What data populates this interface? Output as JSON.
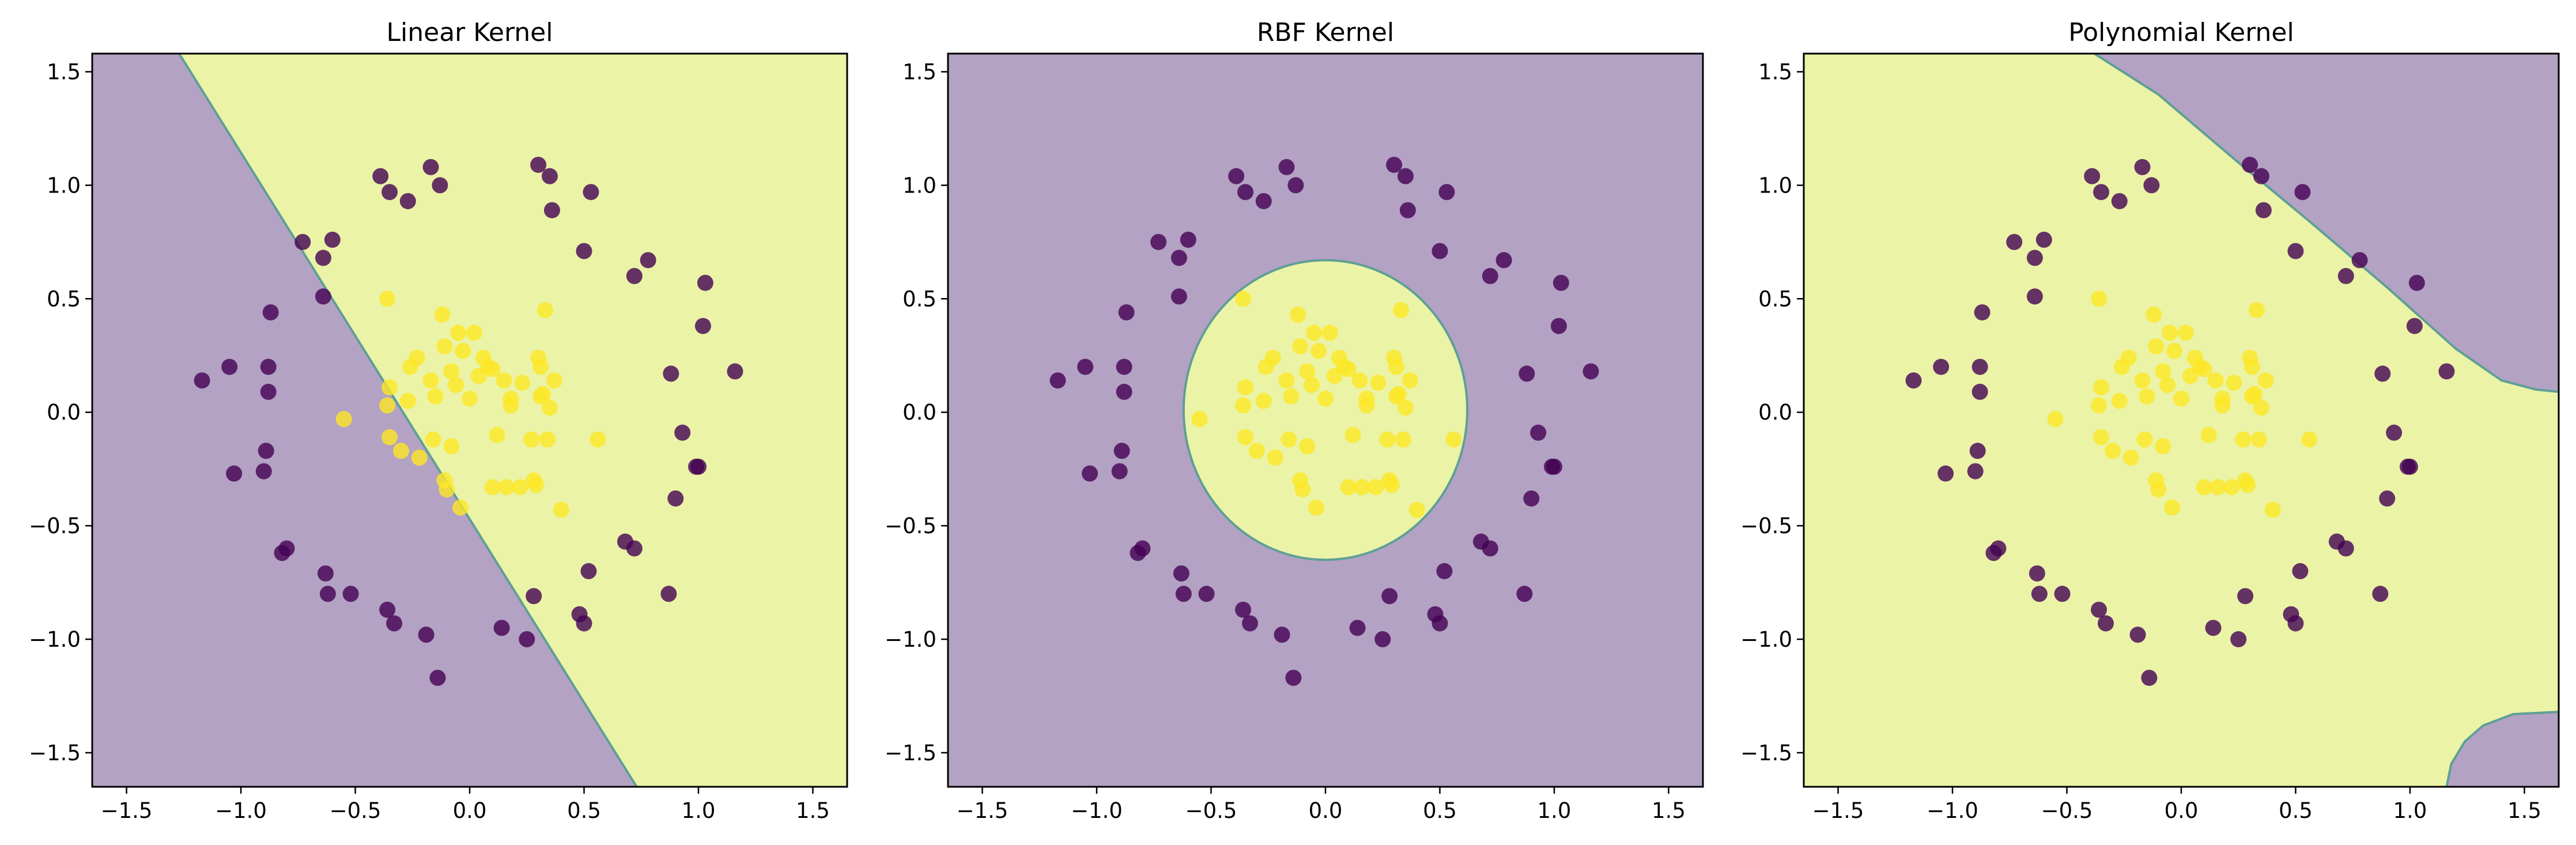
{
  "chart_data": [
    {
      "type": "scatter",
      "title": "Linear Kernel",
      "kernel": "linear",
      "xlim": [
        -1.65,
        1.65
      ],
      "ylim": [
        -1.65,
        1.58
      ],
      "xticks": [
        -1.5,
        -1.0,
        -0.5,
        0.0,
        0.5,
        1.0,
        1.5
      ],
      "yticks": [
        -1.5,
        -1.0,
        -0.5,
        0.0,
        0.5,
        1.0,
        1.5
      ],
      "xtick_labels": [
        "−1.5",
        "−1.0",
        "−0.5",
        "0.0",
        "0.5",
        "1.0",
        "1.5"
      ],
      "ytick_labels": [
        "−1.5",
        "−1.0",
        "−0.5",
        "0.0",
        "0.5",
        "1.0",
        "1.5"
      ],
      "grid": false,
      "background_colors": {
        "class_0": "#b3a2c3",
        "class_1": "#ebf3a7"
      },
      "boundary": {
        "orientation": "line",
        "points": [
          [
            -1.27,
            1.58
          ],
          [
            0.73,
            -1.65
          ]
        ]
      }
    },
    {
      "type": "scatter",
      "title": "RBF Kernel",
      "kernel": "rbf",
      "xlim": [
        -1.65,
        1.65
      ],
      "ylim": [
        -1.65,
        1.58
      ],
      "xticks": [
        -1.5,
        -1.0,
        -0.5,
        0.0,
        0.5,
        1.0,
        1.5
      ],
      "yticks": [
        -1.5,
        -1.0,
        -0.5,
        0.0,
        0.5,
        1.0,
        1.5
      ],
      "xtick_labels": [
        "−1.5",
        "−1.0",
        "−0.5",
        "0.0",
        "0.5",
        "1.0",
        "1.5"
      ],
      "ytick_labels": [
        "−1.5",
        "−1.0",
        "−0.5",
        "0.0",
        "0.5",
        "1.0",
        "1.5"
      ],
      "grid": false,
      "background_colors": {
        "class_0": "#b3a2c3",
        "class_1": "#ebf3a7"
      },
      "boundary": {
        "orientation": "ellipse",
        "center": [
          0.0,
          0.01
        ],
        "radius_x": 0.62,
        "radius_y": 0.66
      }
    },
    {
      "type": "scatter",
      "title": "Polynomial Kernel",
      "kernel": "poly",
      "xlim": [
        -1.65,
        1.65
      ],
      "ylim": [
        -1.65,
        1.58
      ],
      "xticks": [
        -1.5,
        -1.0,
        -0.5,
        0.0,
        0.5,
        1.0,
        1.5
      ],
      "yticks": [
        -1.5,
        -1.0,
        -0.5,
        0.0,
        0.5,
        1.0,
        1.5
      ],
      "xtick_labels": [
        "−1.5",
        "−1.0",
        "−0.5",
        "0.0",
        "0.5",
        "1.0",
        "1.5"
      ],
      "ytick_labels": [
        "−1.5",
        "−1.0",
        "−0.5",
        "0.0",
        "0.5",
        "1.0",
        "1.5"
      ],
      "grid": false,
      "background_colors": {
        "class_0": "#b3a2c3",
        "class_1": "#ebf3a7"
      },
      "boundary": {
        "orientation": "regions",
        "upper_right": [
          [
            -0.38,
            1.58
          ],
          [
            -0.1,
            1.4
          ],
          [
            0.25,
            1.1
          ],
          [
            0.55,
            0.85
          ],
          [
            0.9,
            0.55
          ],
          [
            1.2,
            0.28
          ],
          [
            1.4,
            0.14
          ],
          [
            1.55,
            0.1
          ],
          [
            1.65,
            0.09
          ]
        ],
        "lower_right": [
          [
            1.65,
            -1.32
          ],
          [
            1.45,
            -1.33
          ],
          [
            1.32,
            -1.38
          ],
          [
            1.24,
            -1.45
          ],
          [
            1.18,
            -1.55
          ],
          [
            1.16,
            -1.65
          ]
        ]
      }
    }
  ],
  "points": {
    "colors": {
      "class_0": "#440154",
      "class_1": "#fde725"
    },
    "class_0": [
      [
        -1.17,
        0.14
      ],
      [
        -1.05,
        0.2
      ],
      [
        -1.03,
        -0.27
      ],
      [
        -0.88,
        0.2
      ],
      [
        -0.88,
        0.09
      ],
      [
        -0.89,
        -0.17
      ],
      [
        -0.9,
        -0.26
      ],
      [
        -0.87,
        0.44
      ],
      [
        -0.8,
        -0.6
      ],
      [
        -0.82,
        -0.62
      ],
      [
        -0.73,
        0.75
      ],
      [
        -0.64,
        0.68
      ],
      [
        -0.6,
        0.76
      ],
      [
        -0.64,
        0.51
      ],
      [
        -0.63,
        -0.71
      ],
      [
        -0.62,
        -0.8
      ],
      [
        -0.52,
        -0.8
      ],
      [
        -0.39,
        1.04
      ],
      [
        -0.35,
        0.97
      ],
      [
        -0.27,
        0.93
      ],
      [
        -0.17,
        1.08
      ],
      [
        -0.13,
        1.0
      ],
      [
        -0.36,
        -0.87
      ],
      [
        -0.33,
        -0.93
      ],
      [
        -0.19,
        -0.98
      ],
      [
        -0.14,
        -1.17
      ],
      [
        0.3,
        1.09
      ],
      [
        0.35,
        1.04
      ],
      [
        0.36,
        0.89
      ],
      [
        0.53,
        0.97
      ],
      [
        0.5,
        0.71
      ],
      [
        0.72,
        0.6
      ],
      [
        0.78,
        0.67
      ],
      [
        0.88,
        0.17
      ],
      [
        1.03,
        0.57
      ],
      [
        1.16,
        0.18
      ],
      [
        1.02,
        0.38
      ],
      [
        0.99,
        -0.24
      ],
      [
        1.0,
        -0.24
      ],
      [
        0.93,
        -0.09
      ],
      [
        0.9,
        -0.38
      ],
      [
        0.68,
        -0.57
      ],
      [
        0.72,
        -0.6
      ],
      [
        0.87,
        -0.8
      ],
      [
        0.48,
        -0.89
      ],
      [
        0.5,
        -0.93
      ],
      [
        0.52,
        -0.7
      ],
      [
        0.28,
        -0.81
      ],
      [
        0.25,
        -1.0
      ],
      [
        0.14,
        -0.95
      ]
    ],
    "class_1": [
      [
        -0.55,
        -0.03
      ],
      [
        -0.36,
        0.5
      ],
      [
        -0.36,
        0.03
      ],
      [
        -0.35,
        0.11
      ],
      [
        -0.35,
        -0.11
      ],
      [
        -0.3,
        -0.17
      ],
      [
        -0.27,
        0.05
      ],
      [
        -0.26,
        0.2
      ],
      [
        -0.23,
        0.24
      ],
      [
        -0.22,
        -0.2
      ],
      [
        -0.17,
        0.14
      ],
      [
        -0.16,
        -0.12
      ],
      [
        -0.15,
        0.07
      ],
      [
        -0.12,
        0.43
      ],
      [
        -0.11,
        0.29
      ],
      [
        -0.11,
        -0.3
      ],
      [
        -0.1,
        -0.34
      ],
      [
        -0.08,
        0.18
      ],
      [
        -0.08,
        -0.15
      ],
      [
        -0.06,
        0.12
      ],
      [
        -0.05,
        0.35
      ],
      [
        -0.04,
        -0.42
      ],
      [
        -0.03,
        0.27
      ],
      [
        0.0,
        0.06
      ],
      [
        0.02,
        0.35
      ],
      [
        0.04,
        0.16
      ],
      [
        0.06,
        0.24
      ],
      [
        0.08,
        0.2
      ],
      [
        0.1,
        0.19
      ],
      [
        0.1,
        -0.33
      ],
      [
        0.12,
        -0.1
      ],
      [
        0.15,
        0.14
      ],
      [
        0.16,
        -0.33
      ],
      [
        0.18,
        0.06
      ],
      [
        0.18,
        0.03
      ],
      [
        0.22,
        -0.33
      ],
      [
        0.23,
        0.13
      ],
      [
        0.27,
        -0.12
      ],
      [
        0.28,
        -0.3
      ],
      [
        0.29,
        -0.32
      ],
      [
        0.3,
        0.24
      ],
      [
        0.31,
        0.07
      ],
      [
        0.31,
        0.2
      ],
      [
        0.32,
        0.08
      ],
      [
        0.33,
        0.45
      ],
      [
        0.34,
        -0.12
      ],
      [
        0.35,
        0.02
      ],
      [
        0.37,
        0.14
      ],
      [
        0.4,
        -0.43
      ],
      [
        0.56,
        -0.12
      ]
    ]
  }
}
